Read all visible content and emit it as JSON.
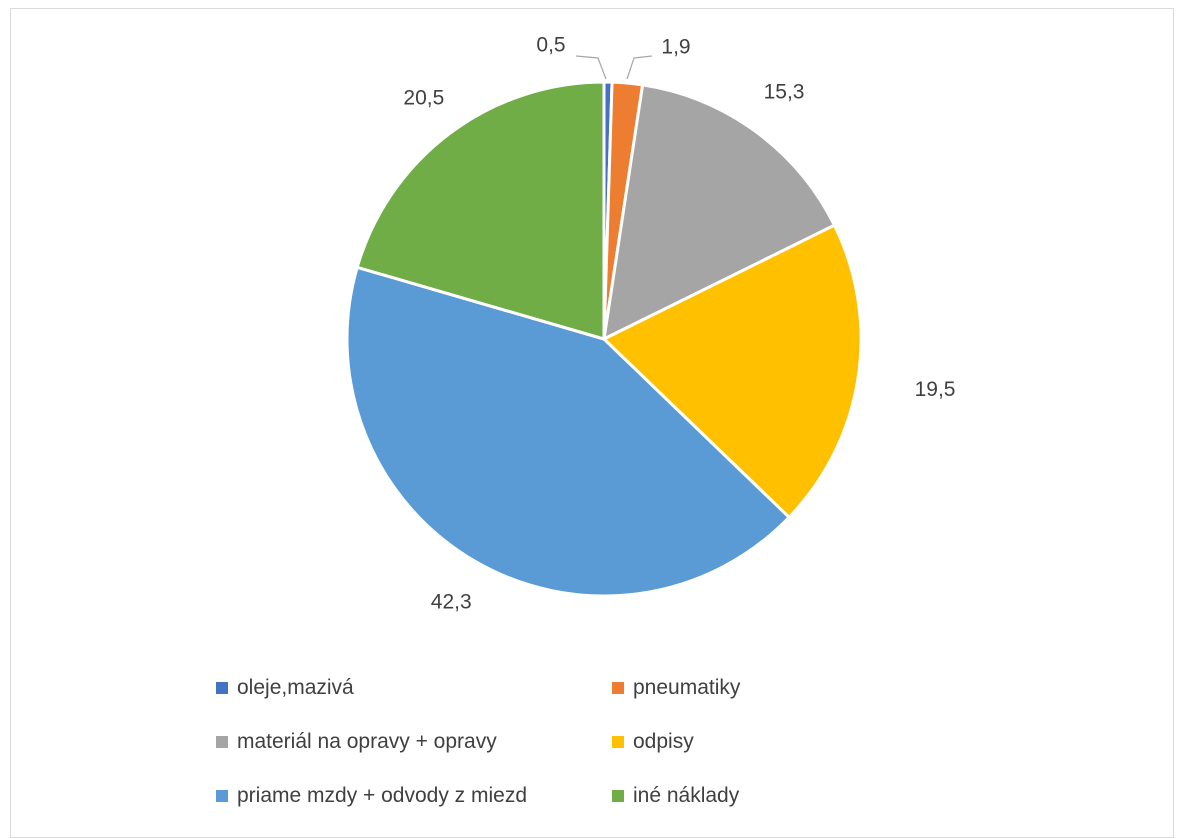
{
  "chart_data": {
    "type": "pie",
    "title": "",
    "legend_position": "bottom",
    "label_precision": 1,
    "slices": [
      {
        "label": "oleje,mazivá",
        "value": 0.5,
        "color": "#4472C4"
      },
      {
        "label": "pneumatiky",
        "value": 1.9,
        "color": "#ED7D31"
      },
      {
        "label": "materiál na opravy + opravy",
        "value": 15.3,
        "color": "#A5A5A5"
      },
      {
        "label": "odpisy",
        "value": 19.5,
        "color": "#FFC000"
      },
      {
        "label": "priame mzdy + odvody z miezd",
        "value": 42.3,
        "color": "#5B9BD5"
      },
      {
        "label": "iné náklady",
        "value": 20.5,
        "color": "#70AD47"
      }
    ]
  }
}
